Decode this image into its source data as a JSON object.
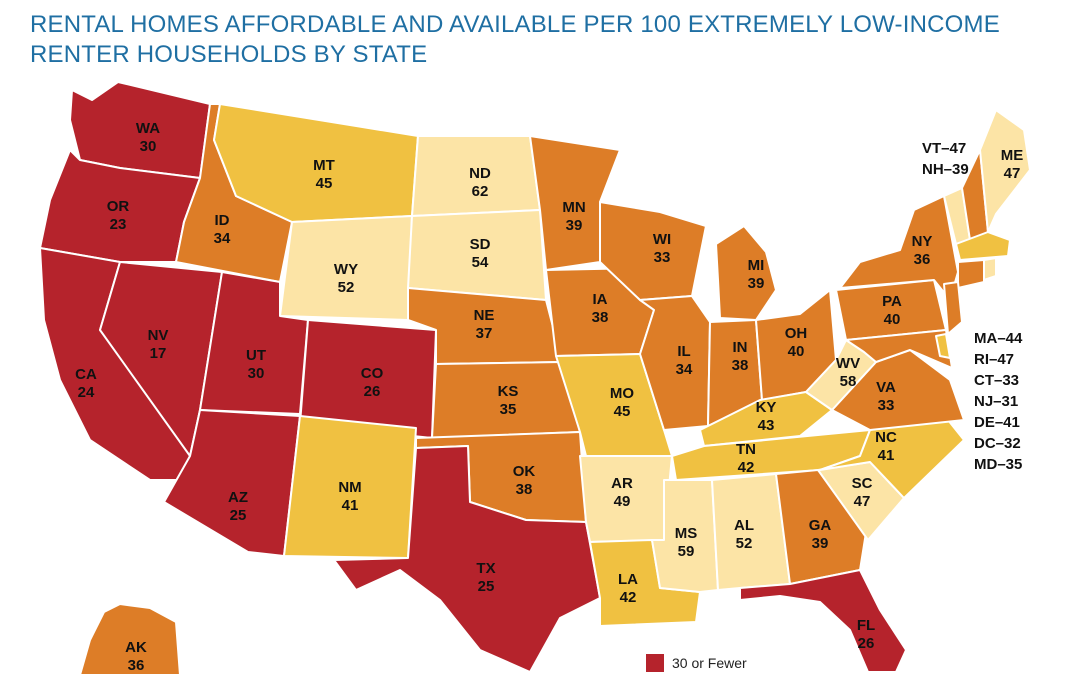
{
  "title": {
    "line1": "RENTAL HOMES AFFORDABLE AND AVAILABLE PER 100 EXTREMELY LOW-INCOME",
    "line2": "RENTER HOUSEHOLDS BY STATE"
  },
  "colors": {
    "c30": "#b5232c",
    "c40": "#dd7d27",
    "c50": "#f0c141",
    "c60": "#fce4a6",
    "border": "#ffffff"
  },
  "states": {
    "WA": {
      "abbr": "WA",
      "value": "30",
      "class": "c30"
    },
    "OR": {
      "abbr": "OR",
      "value": "23",
      "class": "c30"
    },
    "CA": {
      "abbr": "CA",
      "value": "24",
      "class": "c30"
    },
    "NV": {
      "abbr": "NV",
      "value": "17",
      "class": "c30"
    },
    "ID": {
      "abbr": "ID",
      "value": "34",
      "class": "c40"
    },
    "MT": {
      "abbr": "MT",
      "value": "45",
      "class": "c50"
    },
    "WY": {
      "abbr": "WY",
      "value": "52",
      "class": "c60"
    },
    "UT": {
      "abbr": "UT",
      "value": "30",
      "class": "c30"
    },
    "CO": {
      "abbr": "CO",
      "value": "26",
      "class": "c30"
    },
    "AZ": {
      "abbr": "AZ",
      "value": "25",
      "class": "c30"
    },
    "NM": {
      "abbr": "NM",
      "value": "41",
      "class": "c50"
    },
    "ND": {
      "abbr": "ND",
      "value": "62",
      "class": "c60"
    },
    "SD": {
      "abbr": "SD",
      "value": "54",
      "class": "c60"
    },
    "NE": {
      "abbr": "NE",
      "value": "37",
      "class": "c40"
    },
    "KS": {
      "abbr": "KS",
      "value": "35",
      "class": "c40"
    },
    "OK": {
      "abbr": "OK",
      "value": "38",
      "class": "c40"
    },
    "TX": {
      "abbr": "TX",
      "value": "25",
      "class": "c30"
    },
    "MN": {
      "abbr": "MN",
      "value": "39",
      "class": "c40"
    },
    "IA": {
      "abbr": "IA",
      "value": "38",
      "class": "c40"
    },
    "MO": {
      "abbr": "MO",
      "value": "45",
      "class": "c50"
    },
    "AR": {
      "abbr": "AR",
      "value": "49",
      "class": "c60"
    },
    "LA": {
      "abbr": "LA",
      "value": "42",
      "class": "c50"
    },
    "WI": {
      "abbr": "WI",
      "value": "33",
      "class": "c40"
    },
    "IL": {
      "abbr": "IL",
      "value": "34",
      "class": "c40"
    },
    "MI": {
      "abbr": "MI",
      "value": "39",
      "class": "c40"
    },
    "IN": {
      "abbr": "IN",
      "value": "38",
      "class": "c40"
    },
    "OH": {
      "abbr": "OH",
      "value": "40",
      "class": "c40"
    },
    "KY": {
      "abbr": "KY",
      "value": "43",
      "class": "c50"
    },
    "TN": {
      "abbr": "TN",
      "value": "42",
      "class": "c50"
    },
    "MS": {
      "abbr": "MS",
      "value": "59",
      "class": "c60"
    },
    "AL": {
      "abbr": "AL",
      "value": "52",
      "class": "c60"
    },
    "GA": {
      "abbr": "GA",
      "value": "39",
      "class": "c40"
    },
    "FL": {
      "abbr": "FL",
      "value": "26",
      "class": "c30"
    },
    "SC": {
      "abbr": "SC",
      "value": "47",
      "class": "c60"
    },
    "NC": {
      "abbr": "NC",
      "value": "41",
      "class": "c50"
    },
    "VA": {
      "abbr": "VA",
      "value": "33",
      "class": "c40"
    },
    "WV": {
      "abbr": "WV",
      "value": "58",
      "class": "c60"
    },
    "PA": {
      "abbr": "PA",
      "value": "40",
      "class": "c40"
    },
    "NY": {
      "abbr": "NY",
      "value": "36",
      "class": "c40"
    },
    "ME": {
      "abbr": "ME",
      "value": "47",
      "class": "c60"
    },
    "AK": {
      "abbr": "AK",
      "value": "36",
      "class": "c40"
    },
    "VT": {
      "value": "47",
      "class": "c60"
    },
    "NH": {
      "value": "39",
      "class": "c40"
    },
    "MA": {
      "value": "44",
      "class": "c50"
    },
    "RI": {
      "value": "47",
      "class": "c60"
    },
    "CT": {
      "value": "33",
      "class": "c40"
    },
    "NJ": {
      "value": "31",
      "class": "c40"
    },
    "DE": {
      "value": "41",
      "class": "c50"
    },
    "MD": {
      "value": "35",
      "class": "c40"
    }
  },
  "side_labels": {
    "vt": "VT–47",
    "nh": "NH–39",
    "ma": "MA–44",
    "ri": "RI–47",
    "ct": "CT–33",
    "nj": "NJ–31",
    "de": "DE–41",
    "dc": "DC–32",
    "md": "MD–35"
  },
  "legend": {
    "items": [
      {
        "label": "30 or Fewer",
        "class": "c30"
      }
    ]
  }
}
